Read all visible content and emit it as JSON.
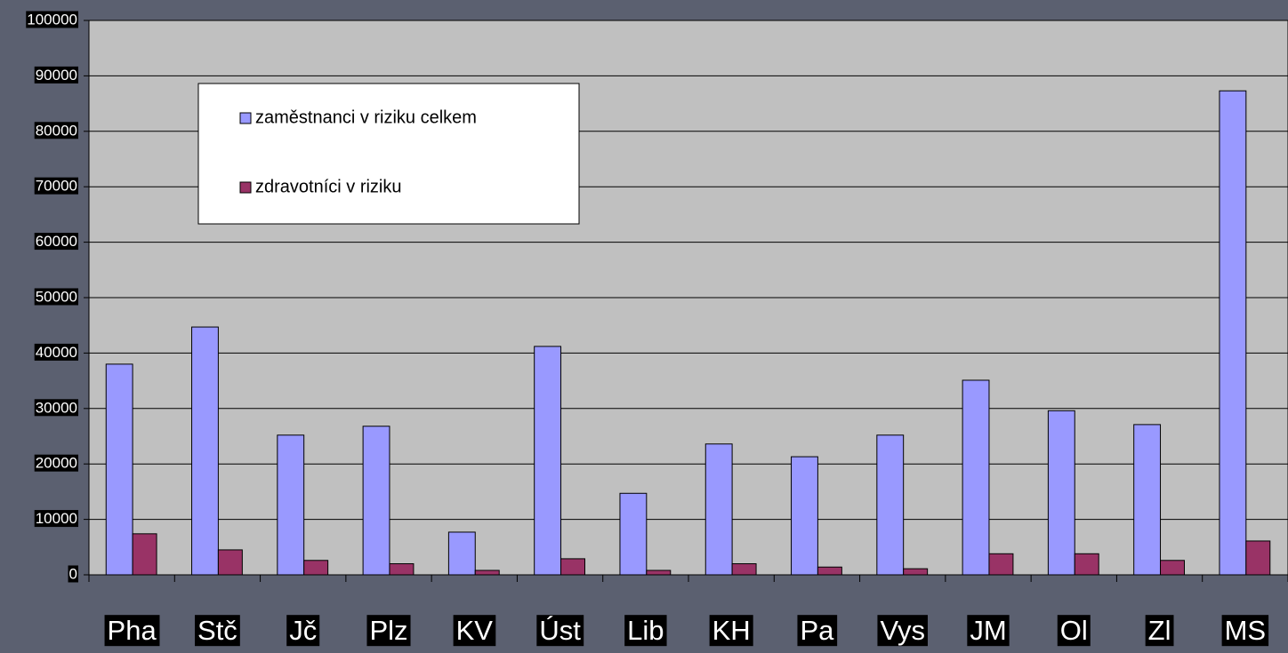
{
  "chart_data": {
    "type": "bar",
    "categories": [
      "Pha",
      "Stč",
      "Jč",
      "Plz",
      "KV",
      "Úst",
      "Lib",
      "KH",
      "Pa",
      "Vys",
      "JM",
      "Ol",
      "Zl",
      "MS"
    ],
    "series": [
      {
        "name": "zaměstnanci v riziku celkem",
        "color": "#9999ff",
        "values": [
          38000,
          44700,
          25200,
          26800,
          7700,
          41200,
          14700,
          23600,
          21300,
          25200,
          35100,
          29600,
          27100,
          87300
        ]
      },
      {
        "name": "zdravotníci v riziku",
        "color": "#993366",
        "values": [
          7400,
          4500,
          2600,
          2000,
          800,
          2900,
          800,
          2000,
          1400,
          1100,
          3800,
          3800,
          2600,
          6100
        ]
      }
    ],
    "ylim": [
      0,
      100000
    ],
    "yticks": [
      0,
      10000,
      20000,
      30000,
      40000,
      50000,
      60000,
      70000,
      80000,
      90000,
      100000
    ],
    "grid": true
  }
}
